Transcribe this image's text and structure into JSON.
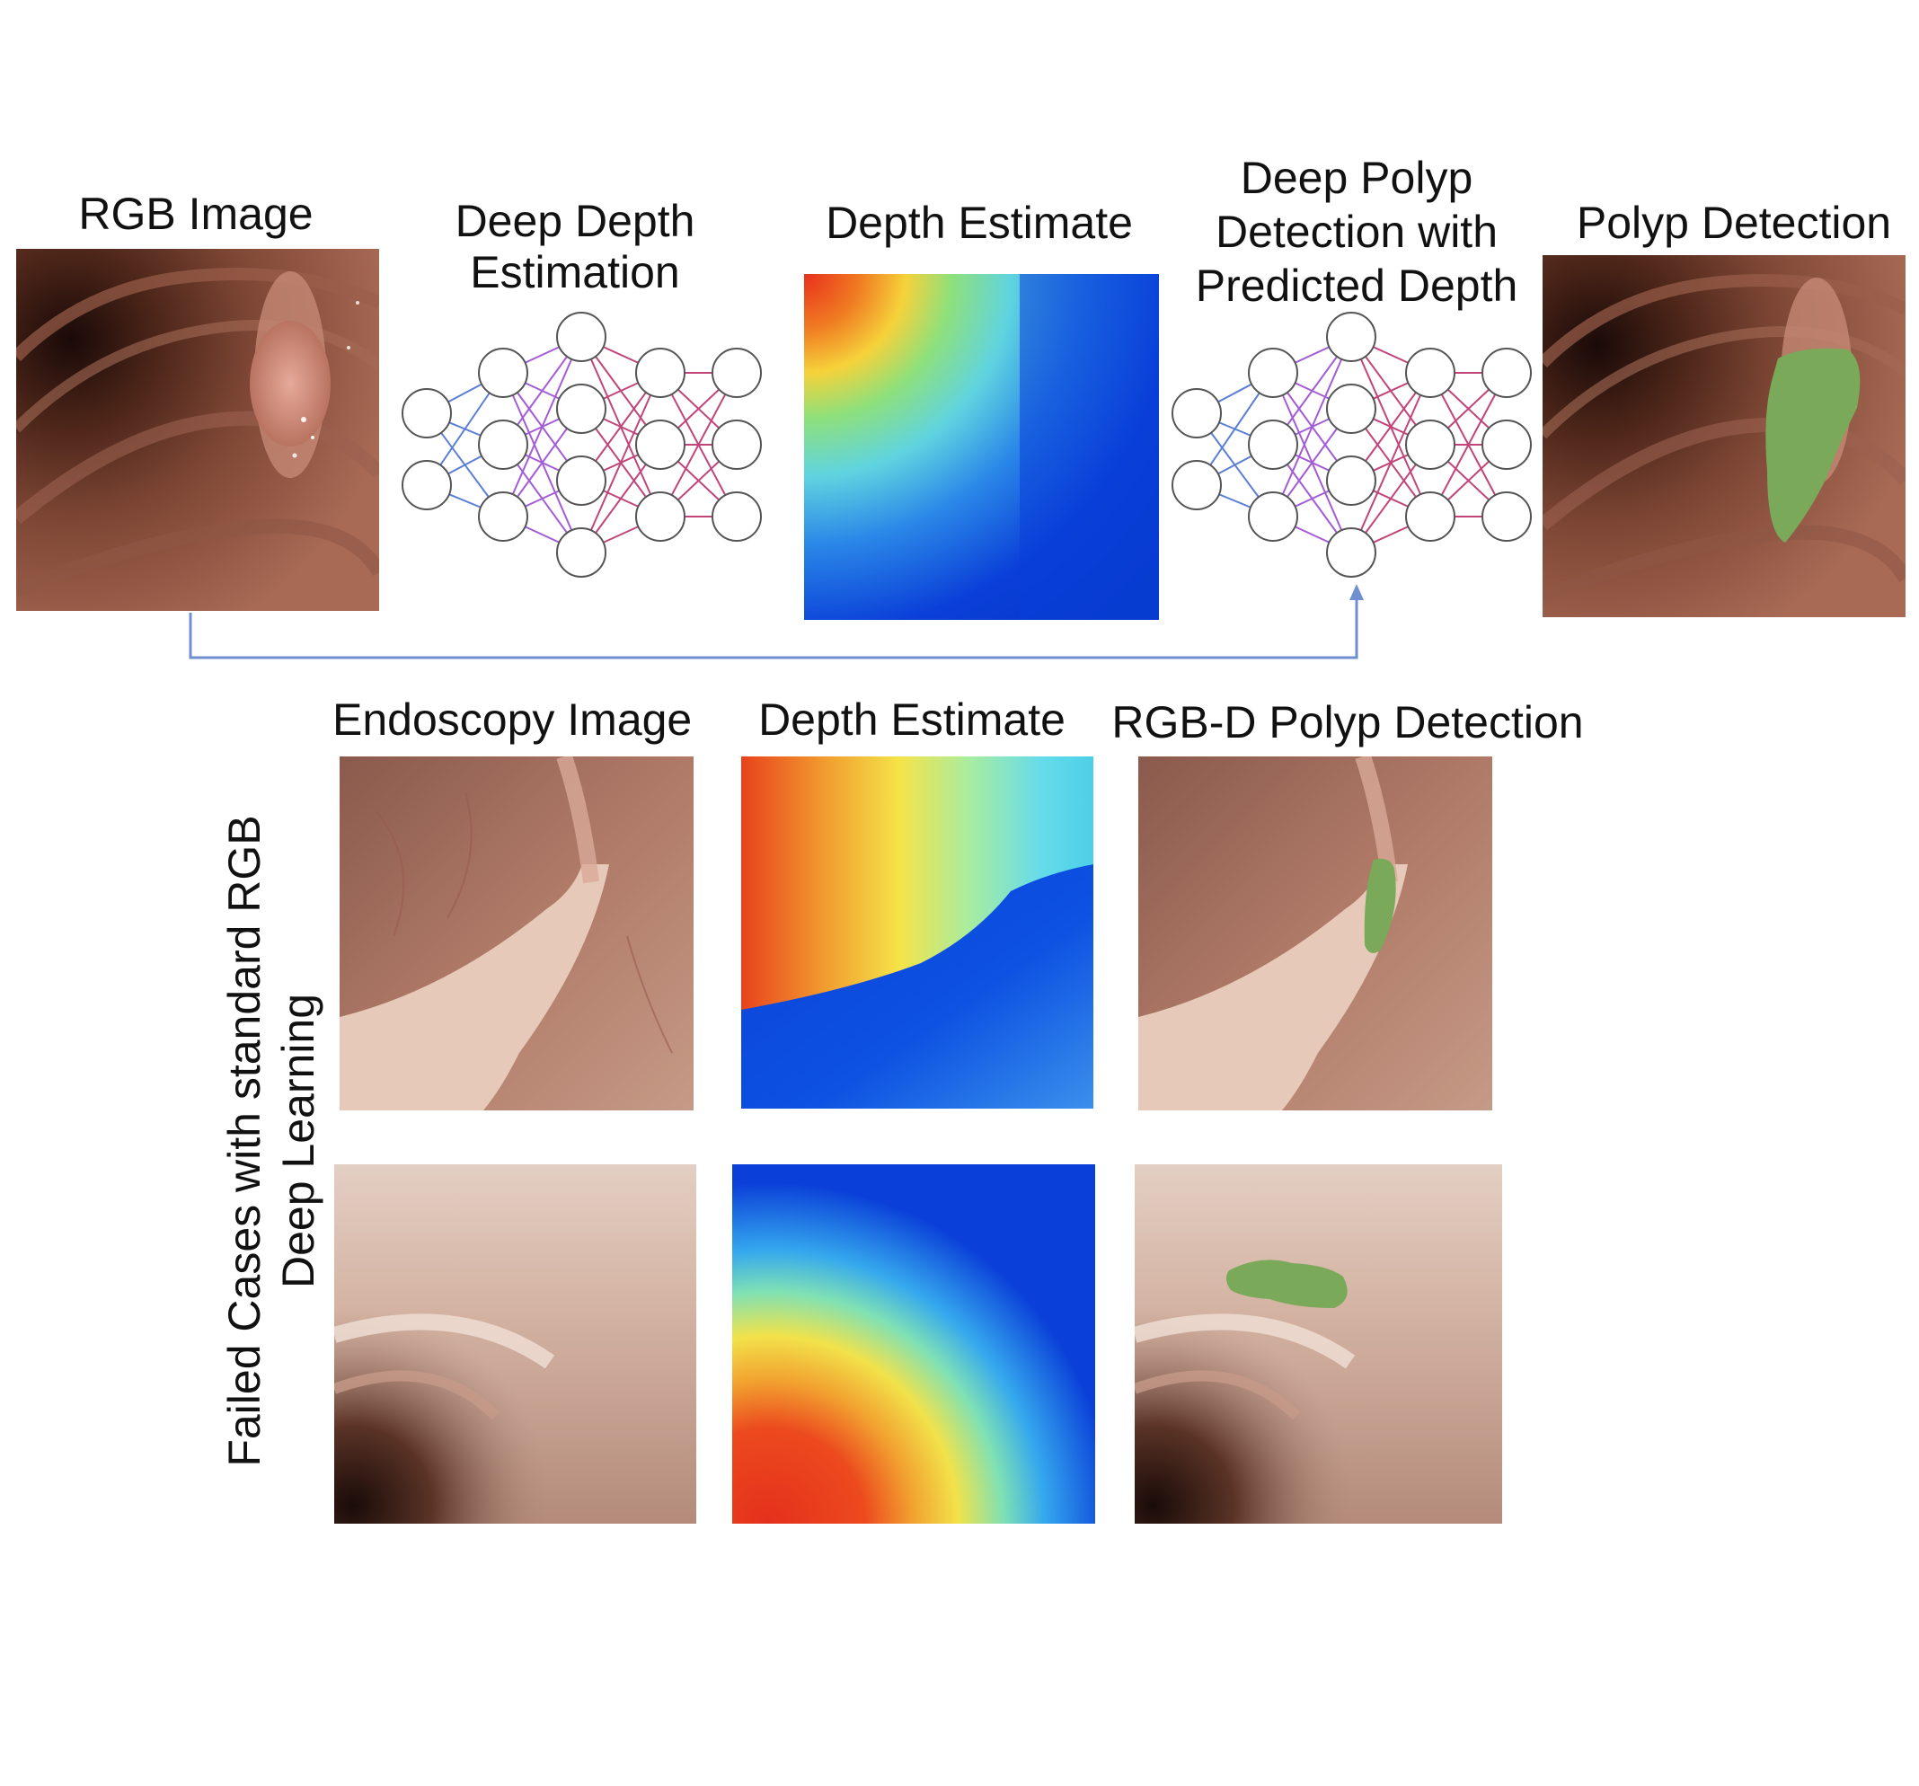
{
  "pipeline": {
    "rgb_image_label": "RGB Image",
    "deep_depth_estimation_label": [
      "Deep Depth",
      "Estimation"
    ],
    "depth_estimate_label": "Depth Estimate",
    "deep_polyp_detection_label": [
      "Deep Polyp",
      "Detection with",
      "Predicted Depth"
    ],
    "polyp_detection_label": "Polyp Detection"
  },
  "examples": {
    "column_labels": {
      "endoscopy": "Endoscopy Image",
      "depth": "Depth Estimate",
      "rgbd": "RGB-D Polyp Detection"
    },
    "row_caption": [
      "Failed Cases with standard RGB",
      "Deep Learning"
    ]
  },
  "colors": {
    "polyp_mask": "#7aa95a",
    "connector_arrow": "#6f8fd0",
    "net_edges_blue": "#5b7fd6",
    "net_edges_purple": "#a45bd6",
    "net_edges_pink": "#c2457a"
  }
}
